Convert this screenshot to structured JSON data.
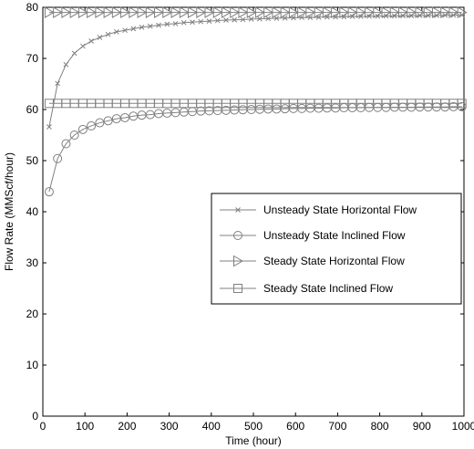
{
  "chart_data": {
    "type": "line",
    "xlabel": "Time (hour)",
    "ylabel": "Flow Rate (MMScf/hour)",
    "xlim": [
      0,
      1000
    ],
    "ylim": [
      0,
      80
    ],
    "xticks": [
      0,
      100,
      200,
      300,
      400,
      500,
      600,
      700,
      800,
      900,
      1000
    ],
    "yticks": [
      0,
      10,
      20,
      30,
      40,
      50,
      60,
      70,
      80
    ],
    "grid": false,
    "legend_position": "center-right",
    "x": [
      15,
      35,
      55,
      75,
      95,
      115,
      135,
      155,
      175,
      195,
      215,
      235,
      255,
      275,
      295,
      315,
      335,
      355,
      375,
      395,
      415,
      435,
      455,
      475,
      495,
      515,
      535,
      555,
      575,
      595,
      615,
      635,
      655,
      675,
      695,
      715,
      735,
      755,
      775,
      795,
      815,
      835,
      855,
      875,
      895,
      915,
      935,
      955,
      975,
      995
    ],
    "series": [
      {
        "name": "Unsteady State Horizontal Flow",
        "marker": "x",
        "color": "#808080",
        "values": [
          56.6,
          65.1,
          68.8,
          71.0,
          72.4,
          73.4,
          74.1,
          74.7,
          75.2,
          75.5,
          75.8,
          76.1,
          76.3,
          76.5,
          76.7,
          76.8,
          77.0,
          77.1,
          77.2,
          77.3,
          77.4,
          77.5,
          77.55,
          77.6,
          77.7,
          77.75,
          77.8,
          77.85,
          77.9,
          77.95,
          78.0,
          78.0,
          78.05,
          78.1,
          78.1,
          78.15,
          78.2,
          78.2,
          78.25,
          78.25,
          78.3,
          78.3,
          78.35,
          78.35,
          78.4,
          78.4,
          78.4,
          78.45,
          78.45,
          78.5
        ]
      },
      {
        "name": "Unsteady State Inclined Flow",
        "marker": "circle",
        "color": "#808080",
        "values": [
          43.9,
          50.4,
          53.3,
          55.0,
          56.1,
          56.8,
          57.4,
          57.8,
          58.2,
          58.4,
          58.7,
          58.9,
          59.0,
          59.2,
          59.3,
          59.4,
          59.5,
          59.6,
          59.7,
          59.75,
          59.8,
          59.85,
          59.9,
          59.95,
          60.0,
          60.05,
          60.1,
          60.1,
          60.15,
          60.2,
          60.2,
          60.25,
          60.25,
          60.3,
          60.3,
          60.35,
          60.35,
          60.35,
          60.4,
          60.4,
          60.4,
          60.45,
          60.45,
          60.45,
          60.5,
          60.5,
          60.5,
          60.5,
          60.55,
          60.55
        ]
      },
      {
        "name": "Steady State Horizontal Flow",
        "marker": "triangle-right",
        "color": "#808080",
        "values": [
          79.0,
          79.0,
          79.0,
          79.0,
          79.0,
          79.0,
          79.0,
          79.0,
          79.0,
          79.0,
          79.0,
          79.0,
          79.0,
          79.0,
          79.0,
          79.0,
          79.0,
          79.0,
          79.0,
          79.0,
          79.0,
          79.0,
          79.0,
          79.0,
          79.0,
          79.0,
          79.0,
          79.0,
          79.0,
          79.0,
          79.0,
          79.0,
          79.0,
          79.0,
          79.0,
          79.0,
          79.0,
          79.0,
          79.0,
          79.0,
          79.0,
          79.0,
          79.0,
          79.0,
          79.0,
          79.0,
          79.0,
          79.0,
          79.0,
          79.0
        ]
      },
      {
        "name": "Steady State Inclined Flow",
        "marker": "square",
        "color": "#808080",
        "values": [
          61.2,
          61.2,
          61.2,
          61.2,
          61.2,
          61.2,
          61.2,
          61.2,
          61.2,
          61.2,
          61.2,
          61.2,
          61.2,
          61.2,
          61.2,
          61.2,
          61.2,
          61.2,
          61.2,
          61.2,
          61.2,
          61.2,
          61.2,
          61.2,
          61.2,
          61.2,
          61.2,
          61.2,
          61.2,
          61.2,
          61.2,
          61.2,
          61.2,
          61.2,
          61.2,
          61.2,
          61.2,
          61.2,
          61.2,
          61.2,
          61.2,
          61.2,
          61.2,
          61.2,
          61.2,
          61.2,
          61.2,
          61.2,
          61.2,
          61.2
        ]
      }
    ]
  }
}
